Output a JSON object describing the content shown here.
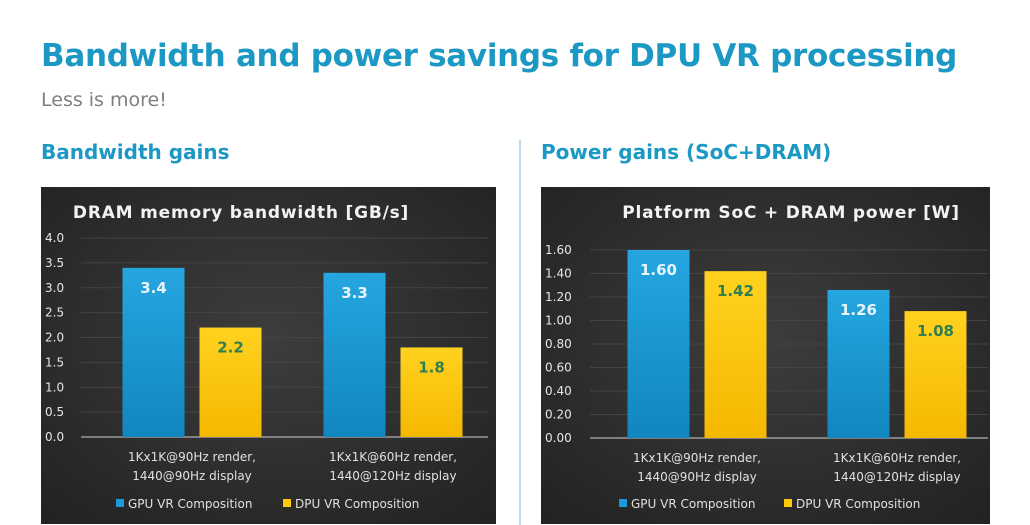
{
  "header": {
    "title": "Bandwidth and power savings for DPU VR processing",
    "subtitle": "Less is more!"
  },
  "sections": {
    "left": "Bandwidth gains",
    "right": "Power gains (SoC+DRAM)"
  },
  "colors": {
    "accent": "#1b98c4",
    "gpu": "#1a9bd7",
    "dpu": "#ffc80a",
    "chart_bg": "#2e2e2e"
  },
  "chart_data": [
    {
      "type": "bar",
      "title": "DRAM memory bandwidth [GB/s]",
      "xlabel": "",
      "ylabel": "",
      "ylim": [
        0,
        4.0
      ],
      "yticks": [
        "0.0",
        "0.5",
        "1.0",
        "1.5",
        "2.0",
        "2.5",
        "3.0",
        "3.5",
        "4.0"
      ],
      "categories": [
        [
          "1Kx1K@90Hz render,",
          "1440@90Hz display"
        ],
        [
          "1Kx1K@60Hz render,",
          "1440@120Hz display"
        ]
      ],
      "series": [
        {
          "name": "GPU VR Composition",
          "values": [
            3.4,
            3.3
          ],
          "labels": [
            "3.4",
            "3.3"
          ]
        },
        {
          "name": "DPU VR Composition",
          "values": [
            2.2,
            1.8
          ],
          "labels": [
            "2.2",
            "1.8"
          ]
        }
      ],
      "legend": "bottom",
      "grid": true
    },
    {
      "type": "bar",
      "title": "Platform SoC + DRAM power [W]",
      "xlabel": "",
      "ylabel": "",
      "ylim": [
        0,
        1.6
      ],
      "yticks": [
        "0.00",
        "0.20",
        "0.40",
        "0.60",
        "0.80",
        "1.00",
        "1.20",
        "1.40",
        "1.60"
      ],
      "categories": [
        [
          "1Kx1K@90Hz render,",
          "1440@90Hz display"
        ],
        [
          "1Kx1K@60Hz render,",
          "1440@120Hz display"
        ]
      ],
      "series": [
        {
          "name": "GPU VR Composition",
          "values": [
            1.6,
            1.26
          ],
          "labels": [
            "1.60",
            "1.26"
          ]
        },
        {
          "name": "DPU VR Composition",
          "values": [
            1.42,
            1.08
          ],
          "labels": [
            "1.42",
            "1.08"
          ]
        }
      ],
      "legend": "bottom",
      "grid": true
    }
  ]
}
